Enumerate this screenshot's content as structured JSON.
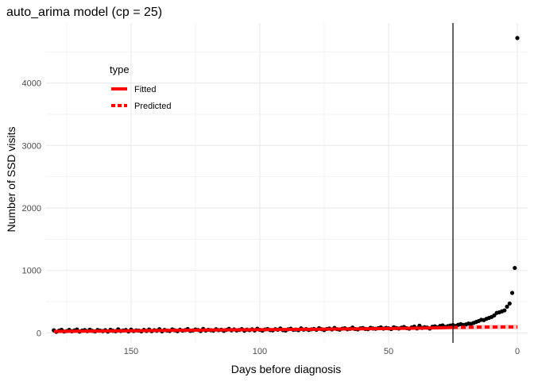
{
  "chart_data": {
    "type": "scatter",
    "title": "auto_arima model (cp = 25)",
    "xlabel": "Days before diagnosis",
    "ylabel": "Number of SSD visits",
    "x_reversed": true,
    "xlim": [
      183,
      -4
    ],
    "ylim": [
      -160,
      4960
    ],
    "x_ticks": [
      150,
      100,
      50,
      0
    ],
    "y_ticks": [
      0,
      1000,
      2000,
      3000,
      4000
    ],
    "grid": true,
    "changepoint": 25,
    "legend": {
      "title": "type",
      "position": "top-left",
      "entries": [
        {
          "label": "Fitted",
          "style": "solid"
        },
        {
          "label": "Predicted",
          "style": "dashed"
        }
      ]
    },
    "colors": {
      "points": "#000000",
      "fitted": "#ff0000",
      "predicted": "#ff0000",
      "predicted_ribbon": "#ffb3b3",
      "grid": "#ebebeb",
      "vline": "#000000"
    },
    "series": [
      {
        "name": "Fitted",
        "x": [
          180,
          170,
          160,
          150,
          140,
          130,
          120,
          110,
          100,
          90,
          80,
          70,
          60,
          50,
          40,
          30,
          25
        ],
        "y": [
          25,
          28,
          30,
          34,
          38,
          42,
          46,
          50,
          52,
          55,
          58,
          62,
          66,
          70,
          75,
          82,
          88
        ]
      },
      {
        "name": "Predicted",
        "x": [
          25,
          20,
          15,
          10,
          5,
          0
        ],
        "y": [
          88,
          90,
          92,
          94,
          95,
          96
        ]
      }
    ],
    "observed": {
      "x": [
        180,
        179,
        178,
        177,
        176,
        175,
        174,
        173,
        172,
        171,
        170,
        169,
        168,
        167,
        166,
        165,
        164,
        163,
        162,
        161,
        160,
        159,
        158,
        157,
        156,
        155,
        154,
        153,
        152,
        151,
        150,
        149,
        148,
        147,
        146,
        145,
        144,
        143,
        142,
        141,
        140,
        139,
        138,
        137,
        136,
        135,
        134,
        133,
        132,
        131,
        130,
        129,
        128,
        127,
        126,
        125,
        124,
        123,
        122,
        121,
        120,
        119,
        118,
        117,
        116,
        115,
        114,
        113,
        112,
        111,
        110,
        109,
        108,
        107,
        106,
        105,
        104,
        103,
        102,
        101,
        100,
        99,
        98,
        97,
        96,
        95,
        94,
        93,
        92,
        91,
        90,
        89,
        88,
        87,
        86,
        85,
        84,
        83,
        82,
        81,
        80,
        79,
        78,
        77,
        76,
        75,
        74,
        73,
        72,
        71,
        70,
        69,
        68,
        67,
        66,
        65,
        64,
        63,
        62,
        61,
        60,
        59,
        58,
        57,
        56,
        55,
        54,
        53,
        52,
        51,
        50,
        49,
        48,
        47,
        46,
        45,
        44,
        43,
        42,
        41,
        40,
        39,
        38,
        37,
        36,
        35,
        34,
        33,
        32,
        31,
        30,
        29,
        28,
        27,
        26,
        25,
        24,
        23,
        22,
        21,
        20,
        19,
        18,
        17,
        16,
        15,
        14,
        13,
        12,
        11,
        10,
        9,
        8,
        7,
        6,
        5,
        4,
        3,
        2,
        1,
        0
      ],
      "y": [
        42,
        18,
        35,
        50,
        22,
        30,
        48,
        26,
        40,
        55,
        20,
        38,
        45,
        28,
        52,
        33,
        24,
        47,
        36,
        29,
        44,
        21,
        50,
        34,
        27,
        58,
        31,
        39,
        46,
        23,
        53,
        30,
        41,
        37,
        26,
        49,
        32,
        55,
        28,
        43,
        35,
        60,
        25,
        48,
        38,
        31,
        57,
        42,
        29,
        51,
        36,
        45,
        62,
        33,
        40,
        55,
        47,
        30,
        64,
        38,
        50,
        43,
        36,
        59,
        45,
        52,
        34,
        48,
        66,
        41,
        56,
        39,
        47,
        61,
        35,
        53,
        44,
        58,
        40,
        68,
        49,
        37,
        55,
        63,
        46,
        42,
        60,
        51,
        70,
        45,
        38,
        58,
        67,
        49,
        54,
        44,
        72,
        52,
        61,
        47,
        57,
        65,
        50,
        75,
        59,
        46,
        63,
        70,
        55,
        80,
        60,
        52,
        68,
        74,
        58,
        65,
        85,
        62,
        56,
        72,
        78,
        64,
        60,
        82,
        70,
        66,
        75,
        88,
        68,
        80,
        73,
        62,
        90,
        78,
        70,
        84,
        95,
        76,
        68,
        88,
        100,
        72,
        115,
        80,
        92,
        85,
        70,
        98,
        105,
        88,
        112,
        120,
        95,
        108,
        118,
        125,
        110,
        130,
        140,
        128,
        135,
        150,
        145,
        160,
        175,
        190,
        210,
        205,
        225,
        240,
        255,
        280,
        320,
        330,
        345,
        360,
        420,
        470,
        640,
        1040,
        4720
      ]
    }
  }
}
